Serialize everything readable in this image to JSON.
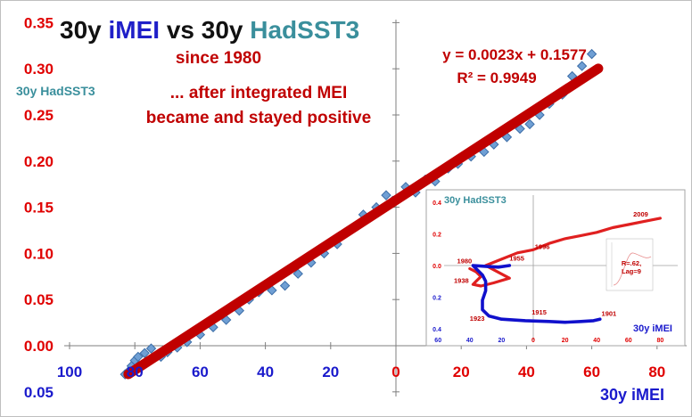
{
  "chart_data": {
    "type": "scatter",
    "title_parts": [
      {
        "text": "30y ",
        "color": "#111111"
      },
      {
        "text": "iMEI",
        "color": "#1f1fc8"
      },
      {
        "text": " vs 30y ",
        "color": "#111111"
      },
      {
        "text": "HadSST3",
        "color": "#3a8f9c"
      }
    ],
    "subtitle": "since 1980",
    "annotation_lines": [
      "... after integrated MEI",
      "became and stayed positive"
    ],
    "ylabel": "30y HadSST3",
    "xlabel": "30y iMEI",
    "equation": "y = 0.0023x + 0.1577",
    "r_squared": "R² = 0.9949",
    "xlim": [
      -100,
      90
    ],
    "ylim": [
      -0.05,
      0.35
    ],
    "x_ticks": [
      {
        "value": -100,
        "label": "100"
      },
      {
        "value": -80,
        "label": "80"
      },
      {
        "value": -60,
        "label": "60"
      },
      {
        "value": -40,
        "label": "40"
      },
      {
        "value": -20,
        "label": "20"
      },
      {
        "value": 0,
        "label": "0"
      },
      {
        "value": 20,
        "label": "20"
      },
      {
        "value": 40,
        "label": "40"
      },
      {
        "value": 60,
        "label": "60"
      },
      {
        "value": 80,
        "label": "80"
      }
    ],
    "y_ticks": [
      {
        "value": 0.35,
        "label": "0.35"
      },
      {
        "value": 0.3,
        "label": "0.30"
      },
      {
        "value": 0.25,
        "label": "0.25"
      },
      {
        "value": 0.2,
        "label": "0.20"
      },
      {
        "value": 0.15,
        "label": "0.15"
      },
      {
        "value": 0.1,
        "label": "0.10"
      },
      {
        "value": 0.05,
        "label": "0.05"
      },
      {
        "value": 0.0,
        "label": "0.00"
      },
      {
        "value": -0.05,
        "label": "0.05"
      }
    ],
    "trend": {
      "slope": 0.0023,
      "intercept": 0.1577,
      "x_range": [
        -82,
        62
      ]
    },
    "points": [
      [
        -83,
        -0.031
      ],
      [
        -82,
        -0.028
      ],
      [
        -81,
        -0.022
      ],
      [
        -80,
        -0.016
      ],
      [
        -79,
        -0.012
      ],
      [
        -77,
        -0.008
      ],
      [
        -75,
        -0.003
      ],
      [
        -72,
        -0.012
      ],
      [
        -70,
        -0.007
      ],
      [
        -67,
        -0.002
      ],
      [
        -64,
        0.004
      ],
      [
        -60,
        0.012
      ],
      [
        -56,
        0.02
      ],
      [
        -52,
        0.028
      ],
      [
        -48,
        0.038
      ],
      [
        -45,
        0.05
      ],
      [
        -42,
        0.058
      ],
      [
        -38,
        0.06
      ],
      [
        -34,
        0.065
      ],
      [
        -30,
        0.078
      ],
      [
        -26,
        0.09
      ],
      [
        -22,
        0.1
      ],
      [
        -18,
        0.11
      ],
      [
        -14,
        0.126
      ],
      [
        -10,
        0.142
      ],
      [
        -6,
        0.15
      ],
      [
        -3,
        0.163
      ],
      [
        -1,
        0.157
      ],
      [
        3,
        0.172
      ],
      [
        6,
        0.166
      ],
      [
        9,
        0.18
      ],
      [
        12,
        0.178
      ],
      [
        16,
        0.192
      ],
      [
        19,
        0.197
      ],
      [
        23,
        0.205
      ],
      [
        27,
        0.21
      ],
      [
        30,
        0.218
      ],
      [
        34,
        0.226
      ],
      [
        38,
        0.235
      ],
      [
        41,
        0.24
      ],
      [
        44,
        0.25
      ],
      [
        47,
        0.262
      ],
      [
        51,
        0.272
      ],
      [
        54,
        0.292
      ],
      [
        57,
        0.303
      ],
      [
        60,
        0.316
      ]
    ],
    "colors": {
      "trend": "#c00000",
      "points": "#6f9fd4",
      "point_edge": "#3d6ea8",
      "y_tick": "#e00000",
      "x_tick_neg": "#1a1acc",
      "x_tick_pos": "#e00000",
      "title_red": "#c00000",
      "xlabel": "#1a1acc",
      "ylabel": "#3a8f9c"
    },
    "inset": {
      "title": "30y HadSST3",
      "xlabel": "30y iMEI",
      "xlim": [
        -60,
        80
      ],
      "ylim": [
        -0.4,
        0.4
      ],
      "x_ticks": [
        {
          "value": -60,
          "label": "60"
        },
        {
          "value": -40,
          "label": "40"
        },
        {
          "value": -20,
          "label": "20"
        },
        {
          "value": 0,
          "label": "0"
        },
        {
          "value": 20,
          "label": "20"
        },
        {
          "value": 40,
          "label": "40"
        },
        {
          "value": 60,
          "label": "60"
        },
        {
          "value": 80,
          "label": "80"
        }
      ],
      "y_ticks": [
        {
          "value": 0.4,
          "label": "0.4"
        },
        {
          "value": 0.2,
          "label": "0.2"
        },
        {
          "value": 0.0,
          "label": "0.0"
        },
        {
          "value": -0.2,
          "label": "0.2"
        },
        {
          "value": -0.4,
          "label": "0.4"
        }
      ],
      "blue_series": [
        [
          -15,
          0.0
        ],
        [
          -22,
          -0.01
        ],
        [
          -30,
          -0.005
        ],
        [
          -38,
          0.0
        ],
        [
          -36,
          -0.02
        ],
        [
          -32,
          -0.06
        ],
        [
          -30,
          -0.1
        ],
        [
          -30,
          -0.16
        ],
        [
          -32,
          -0.22
        ],
        [
          -32,
          -0.28
        ],
        [
          -28,
          -0.32
        ],
        [
          -20,
          -0.34
        ],
        [
          -5,
          -0.35
        ],
        [
          10,
          -0.355
        ],
        [
          20,
          -0.36
        ],
        [
          30,
          -0.355
        ],
        [
          38,
          -0.35
        ],
        [
          42,
          -0.34
        ]
      ],
      "red_series": [
        [
          -40,
          -0.02
        ],
        [
          -36,
          -0.04
        ],
        [
          -33,
          -0.07
        ],
        [
          -36,
          -0.1
        ],
        [
          -38,
          -0.12
        ],
        [
          -33,
          -0.13
        ],
        [
          -25,
          -0.11
        ],
        [
          -15,
          -0.08
        ],
        [
          -30,
          0.0
        ],
        [
          -20,
          0.04
        ],
        [
          -10,
          0.08
        ],
        [
          0,
          0.1
        ],
        [
          10,
          0.14
        ],
        [
          20,
          0.17
        ],
        [
          30,
          0.19
        ],
        [
          40,
          0.21
        ],
        [
          50,
          0.24
        ],
        [
          60,
          0.26
        ],
        [
          70,
          0.28
        ],
        [
          80,
          0.3
        ]
      ],
      "year_labels": [
        {
          "x": 63,
          "y": 0.31,
          "text": "2009",
          "color": "#c00000"
        },
        {
          "x": 1,
          "y": 0.105,
          "text": "1996",
          "color": "#c00000"
        },
        {
          "x": -15,
          "y": 0.03,
          "text": "1955",
          "color": "#c00000"
        },
        {
          "x": -48,
          "y": 0.015,
          "text": "1980",
          "color": "#c00000"
        },
        {
          "x": -50,
          "y": -0.11,
          "text": "1938",
          "color": "#c00000"
        },
        {
          "x": -1,
          "y": -0.31,
          "text": "1915",
          "color": "#c00000"
        },
        {
          "x": -40,
          "y": -0.35,
          "text": "1923",
          "color": "#c00000"
        },
        {
          "x": 43,
          "y": -0.32,
          "text": "1901",
          "color": "#c00000"
        }
      ],
      "mini_chart_label": [
        "R=.62,",
        "Lag=9"
      ]
    }
  }
}
